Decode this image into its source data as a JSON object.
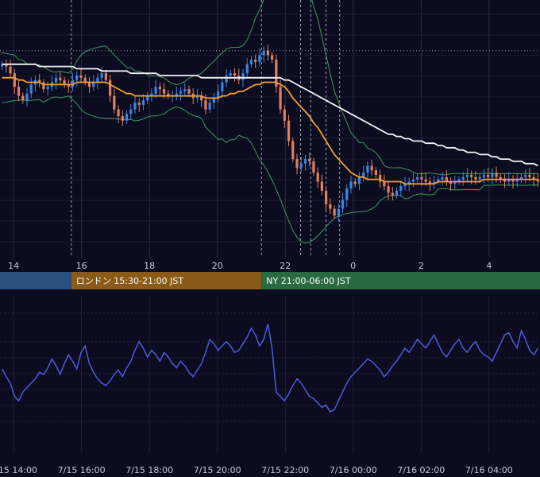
{
  "chart_data": [
    {
      "type": "candlestick",
      "colors": {
        "background": "#0c0c20",
        "grid": "#2a2c44",
        "candle_up": "#3a86e8",
        "candle_down": "#e0805e",
        "bollinger": "#3f9a5a",
        "ma_short": "#f0a030",
        "ma_long": "#f2f2f2",
        "session_marker": "#a0a0b0"
      },
      "xticks": [
        "14",
        "16",
        "18",
        "20",
        "22",
        "0",
        "2",
        "4"
      ],
      "xtick_hours": [
        14,
        16,
        18,
        20,
        22,
        24,
        26,
        28
      ],
      "x_range_hours": [
        13.6,
        29.5
      ],
      "y_range": [
        0,
        1
      ],
      "session_markers_hours": [
        22.45,
        22.75,
        23.2,
        23.6
      ],
      "ohlc_close": [
        0.8,
        0.79,
        0.76,
        0.7,
        0.66,
        0.64,
        0.67,
        0.71,
        0.73,
        0.72,
        0.69,
        0.7,
        0.72,
        0.74,
        0.73,
        0.71,
        0.7,
        0.73,
        0.75,
        0.74,
        0.72,
        0.7,
        0.72,
        0.74,
        0.76,
        0.73,
        0.66,
        0.6,
        0.57,
        0.55,
        0.58,
        0.6,
        0.63,
        0.62,
        0.64,
        0.66,
        0.67,
        0.7,
        0.69,
        0.67,
        0.66,
        0.66,
        0.67,
        0.68,
        0.69,
        0.67,
        0.65,
        0.66,
        0.64,
        0.6,
        0.63,
        0.65,
        0.68,
        0.72,
        0.75,
        0.76,
        0.75,
        0.73,
        0.76,
        0.8,
        0.82,
        0.81,
        0.84,
        0.86,
        0.84,
        0.82,
        0.7,
        0.6,
        0.55,
        0.46,
        0.38,
        0.34,
        0.36,
        0.38,
        0.37,
        0.32,
        0.28,
        0.24,
        0.18,
        0.16,
        0.13,
        0.16,
        0.2,
        0.25,
        0.28,
        0.27,
        0.3,
        0.32,
        0.35,
        0.33,
        0.31,
        0.28,
        0.26,
        0.23,
        0.22,
        0.24,
        0.26,
        0.27,
        0.28,
        0.29,
        0.3,
        0.29,
        0.28,
        0.27,
        0.28,
        0.29,
        0.3,
        0.28,
        0.27,
        0.28,
        0.29,
        0.3,
        0.31,
        0.3,
        0.29,
        0.3,
        0.31,
        0.3,
        0.32,
        0.3,
        0.29,
        0.28,
        0.29,
        0.28,
        0.29,
        0.3,
        0.31,
        0.3,
        0.29,
        0.28
      ],
      "ma_short": [
        0.74,
        0.74,
        0.74,
        0.74,
        0.73,
        0.73,
        0.72,
        0.72,
        0.72,
        0.72,
        0.71,
        0.71,
        0.71,
        0.71,
        0.71,
        0.71,
        0.71,
        0.71,
        0.72,
        0.72,
        0.72,
        0.72,
        0.72,
        0.72,
        0.72,
        0.72,
        0.71,
        0.7,
        0.69,
        0.68,
        0.67,
        0.67,
        0.66,
        0.66,
        0.66,
        0.66,
        0.66,
        0.66,
        0.66,
        0.66,
        0.66,
        0.66,
        0.66,
        0.66,
        0.66,
        0.66,
        0.66,
        0.66,
        0.66,
        0.65,
        0.65,
        0.65,
        0.65,
        0.66,
        0.66,
        0.67,
        0.67,
        0.68,
        0.68,
        0.69,
        0.7,
        0.71,
        0.71,
        0.72,
        0.72,
        0.72,
        0.72,
        0.71,
        0.7,
        0.68,
        0.65,
        0.63,
        0.61,
        0.59,
        0.57,
        0.54,
        0.52,
        0.49,
        0.46,
        0.43,
        0.4,
        0.38,
        0.36,
        0.34,
        0.32,
        0.31,
        0.3,
        0.3,
        0.29,
        0.29,
        0.29,
        0.29,
        0.28,
        0.28,
        0.28,
        0.28,
        0.28,
        0.27,
        0.27,
        0.27,
        0.27,
        0.27,
        0.27,
        0.27,
        0.27,
        0.28,
        0.28,
        0.28,
        0.28,
        0.28,
        0.28,
        0.28,
        0.28,
        0.28,
        0.28,
        0.28,
        0.29,
        0.29,
        0.29,
        0.29,
        0.29,
        0.29,
        0.29,
        0.29,
        0.29,
        0.29,
        0.29,
        0.29,
        0.29,
        0.29
      ],
      "ma_long": [
        0.8,
        0.8,
        0.8,
        0.8,
        0.8,
        0.8,
        0.8,
        0.8,
        0.8,
        0.79,
        0.79,
        0.79,
        0.79,
        0.79,
        0.79,
        0.79,
        0.79,
        0.79,
        0.78,
        0.78,
        0.78,
        0.78,
        0.78,
        0.78,
        0.77,
        0.77,
        0.77,
        0.77,
        0.77,
        0.77,
        0.77,
        0.76,
        0.76,
        0.76,
        0.76,
        0.76,
        0.76,
        0.76,
        0.75,
        0.75,
        0.75,
        0.75,
        0.75,
        0.75,
        0.75,
        0.75,
        0.75,
        0.75,
        0.74,
        0.74,
        0.74,
        0.74,
        0.74,
        0.74,
        0.74,
        0.74,
        0.74,
        0.74,
        0.74,
        0.74,
        0.74,
        0.74,
        0.74,
        0.74,
        0.74,
        0.74,
        0.74,
        0.74,
        0.73,
        0.73,
        0.72,
        0.71,
        0.7,
        0.69,
        0.68,
        0.67,
        0.66,
        0.65,
        0.64,
        0.63,
        0.62,
        0.61,
        0.6,
        0.59,
        0.58,
        0.57,
        0.56,
        0.55,
        0.54,
        0.53,
        0.52,
        0.51,
        0.5,
        0.49,
        0.49,
        0.48,
        0.48,
        0.47,
        0.47,
        0.46,
        0.46,
        0.46,
        0.45,
        0.45,
        0.45,
        0.44,
        0.44,
        0.43,
        0.43,
        0.43,
        0.42,
        0.42,
        0.41,
        0.41,
        0.41,
        0.4,
        0.4,
        0.4,
        0.39,
        0.39,
        0.38,
        0.38,
        0.38,
        0.37,
        0.37,
        0.37,
        0.36,
        0.36,
        0.36,
        0.35
      ]
    },
    {
      "type": "line",
      "xticks": [
        "7/15 14:00",
        "7/15 16:00",
        "7/15 18:00",
        "7/15 20:00",
        "7/15 22:00",
        "7/16 00:00",
        "7/16 02:00",
        "7/16 04:00"
      ],
      "xtick_hours": [
        14,
        16,
        18,
        20,
        22,
        24,
        26,
        28
      ],
      "x_range_hours": [
        13.6,
        29.5
      ],
      "y_range": [
        0,
        1
      ],
      "color": "#5060e8",
      "values": [
        0.55,
        0.48,
        0.42,
        0.3,
        0.26,
        0.34,
        0.38,
        0.42,
        0.46,
        0.52,
        0.5,
        0.56,
        0.64,
        0.58,
        0.5,
        0.6,
        0.68,
        0.62,
        0.55,
        0.7,
        0.76,
        0.6,
        0.52,
        0.46,
        0.42,
        0.4,
        0.44,
        0.5,
        0.54,
        0.48,
        0.56,
        0.62,
        0.72,
        0.8,
        0.74,
        0.66,
        0.72,
        0.68,
        0.62,
        0.7,
        0.66,
        0.6,
        0.56,
        0.62,
        0.58,
        0.52,
        0.48,
        0.54,
        0.6,
        0.7,
        0.82,
        0.78,
        0.72,
        0.76,
        0.8,
        0.76,
        0.7,
        0.72,
        0.78,
        0.84,
        0.92,
        0.86,
        0.76,
        0.82,
        0.96,
        0.74,
        0.34,
        0.3,
        0.26,
        0.32,
        0.4,
        0.46,
        0.42,
        0.36,
        0.3,
        0.28,
        0.24,
        0.2,
        0.22,
        0.16,
        0.18,
        0.26,
        0.34,
        0.42,
        0.48,
        0.52,
        0.56,
        0.6,
        0.64,
        0.62,
        0.58,
        0.54,
        0.48,
        0.52,
        0.58,
        0.62,
        0.68,
        0.74,
        0.7,
        0.76,
        0.82,
        0.78,
        0.74,
        0.8,
        0.86,
        0.78,
        0.7,
        0.66,
        0.72,
        0.78,
        0.82,
        0.74,
        0.7,
        0.76,
        0.8,
        0.72,
        0.68,
        0.66,
        0.62,
        0.7,
        0.78,
        0.86,
        0.88,
        0.8,
        0.74,
        0.9,
        0.82,
        0.72,
        0.68,
        0.74
      ]
    }
  ],
  "sessions": [
    {
      "label": "",
      "color": "#2a5080",
      "start_hour": 13.6,
      "end_hour": 15.7
    },
    {
      "label": "ロンドン 15:30-21:00 JST",
      "color": "#8a5a18",
      "start_hour": 15.7,
      "end_hour": 21.3
    },
    {
      "label": "NY 21:00-06:00 JST",
      "color": "#2a6a40",
      "start_hour": 21.3,
      "end_hour": 29.5
    }
  ]
}
